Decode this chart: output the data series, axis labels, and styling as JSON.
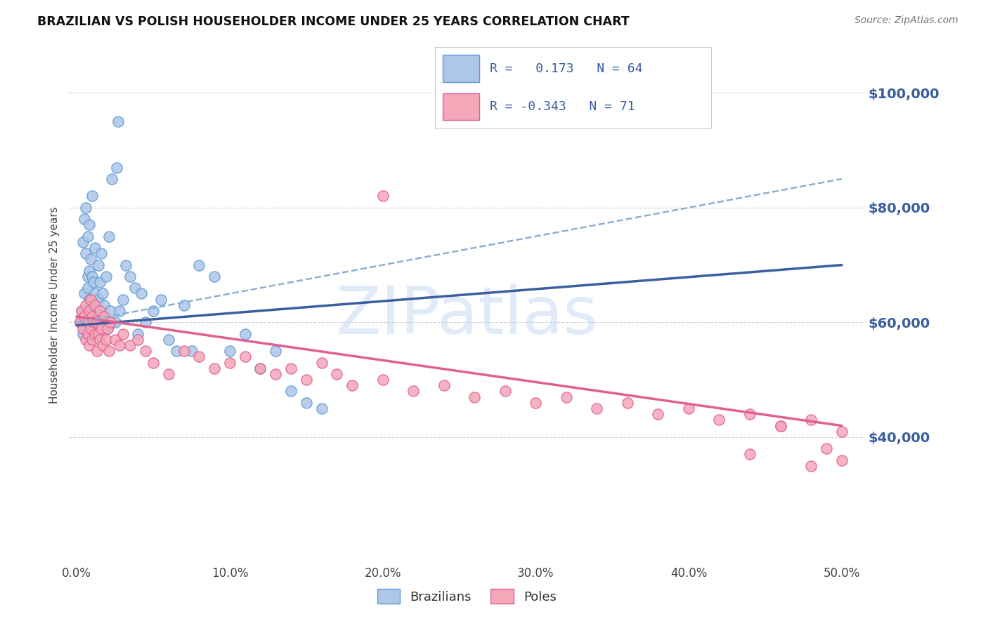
{
  "title": "BRAZILIAN VS POLISH HOUSEHOLDER INCOME UNDER 25 YEARS CORRELATION CHART",
  "source": "Source: ZipAtlas.com",
  "ylabel": "Householder Income Under 25 years",
  "xlabel_ticks": [
    "0.0%",
    "10.0%",
    "20.0%",
    "30.0%",
    "40.0%",
    "50.0%"
  ],
  "xlabel_vals": [
    0.0,
    0.1,
    0.2,
    0.3,
    0.4,
    0.5
  ],
  "ylabel_ticks": [
    "$40,000",
    "$60,000",
    "$80,000",
    "$100,000"
  ],
  "ylabel_vals": [
    40000,
    60000,
    80000,
    100000
  ],
  "xlim": [
    -0.005,
    0.515
  ],
  "ylim": [
    18000,
    108000
  ],
  "brazilian_color": "#aec6e8",
  "polish_color": "#f4a7b9",
  "brazilian_edge": "#5b9bd5",
  "polish_edge": "#e06090",
  "trend_brazilian_color": "#3a5fa0",
  "trend_polish_color": "#e06090",
  "trend_dashed_color": "#8ab0d8",
  "watermark_text": "ZIPatlas",
  "watermark_color": "#c8daf5",
  "legend_r1": "R =   0.173   N = 64",
  "legend_r2": "R = -0.343   N = 71",
  "legend_text_color": "#3a5fa0",
  "trend_braz_x0": 0.0,
  "trend_braz_x1": 0.5,
  "trend_braz_y0": 59500,
  "trend_braz_y1": 70000,
  "trend_pole_x0": 0.0,
  "trend_pole_x1": 0.5,
  "trend_pole_y0": 61000,
  "trend_pole_y1": 42000,
  "trend_dash_x0": 0.0,
  "trend_dash_x1": 0.5,
  "trend_dash_y0": 60000,
  "trend_dash_y1": 85000,
  "braz_x": [
    0.002,
    0.003,
    0.004,
    0.004,
    0.005,
    0.005,
    0.006,
    0.006,
    0.007,
    0.007,
    0.007,
    0.008,
    0.008,
    0.008,
    0.009,
    0.009,
    0.01,
    0.01,
    0.01,
    0.011,
    0.011,
    0.012,
    0.012,
    0.013,
    0.013,
    0.014,
    0.014,
    0.015,
    0.015,
    0.016,
    0.016,
    0.017,
    0.018,
    0.019,
    0.02,
    0.021,
    0.022,
    0.023,
    0.025,
    0.026,
    0.027,
    0.028,
    0.03,
    0.032,
    0.035,
    0.038,
    0.04,
    0.042,
    0.045,
    0.05,
    0.055,
    0.06,
    0.065,
    0.07,
    0.075,
    0.08,
    0.09,
    0.1,
    0.11,
    0.12,
    0.13,
    0.14,
    0.15,
    0.16
  ],
  "braz_y": [
    60000,
    62000,
    74000,
    58000,
    78000,
    65000,
    72000,
    80000,
    68000,
    66000,
    75000,
    64000,
    69000,
    77000,
    63000,
    71000,
    61000,
    68000,
    82000,
    60000,
    67000,
    65000,
    73000,
    62000,
    58000,
    64000,
    70000,
    61000,
    67000,
    59000,
    72000,
    65000,
    63000,
    68000,
    59000,
    75000,
    62000,
    85000,
    60000,
    87000,
    95000,
    62000,
    64000,
    70000,
    68000,
    66000,
    58000,
    65000,
    60000,
    62000,
    64000,
    57000,
    55000,
    63000,
    55000,
    70000,
    68000,
    55000,
    58000,
    52000,
    55000,
    48000,
    46000,
    45000
  ],
  "pole_x": [
    0.002,
    0.003,
    0.004,
    0.005,
    0.006,
    0.006,
    0.007,
    0.007,
    0.008,
    0.008,
    0.009,
    0.009,
    0.01,
    0.01,
    0.011,
    0.012,
    0.012,
    0.013,
    0.013,
    0.014,
    0.015,
    0.015,
    0.016,
    0.017,
    0.018,
    0.019,
    0.02,
    0.021,
    0.022,
    0.025,
    0.028,
    0.03,
    0.035,
    0.04,
    0.045,
    0.05,
    0.06,
    0.07,
    0.08,
    0.09,
    0.1,
    0.11,
    0.12,
    0.13,
    0.14,
    0.15,
    0.16,
    0.17,
    0.18,
    0.2,
    0.22,
    0.24,
    0.26,
    0.28,
    0.3,
    0.32,
    0.34,
    0.36,
    0.38,
    0.4,
    0.42,
    0.44,
    0.46,
    0.48,
    0.5,
    0.5,
    0.49,
    0.48,
    0.46,
    0.44,
    0.2
  ],
  "pole_y": [
    60000,
    62000,
    59000,
    61000,
    57000,
    63000,
    60000,
    58000,
    62000,
    56000,
    59000,
    64000,
    57000,
    61000,
    60000,
    58000,
    63000,
    55000,
    60000,
    58000,
    57000,
    62000,
    59000,
    56000,
    61000,
    57000,
    59000,
    55000,
    60000,
    57000,
    56000,
    58000,
    56000,
    57000,
    55000,
    53000,
    51000,
    55000,
    54000,
    52000,
    53000,
    54000,
    52000,
    51000,
    52000,
    50000,
    53000,
    51000,
    49000,
    50000,
    48000,
    49000,
    47000,
    48000,
    46000,
    47000,
    45000,
    46000,
    44000,
    45000,
    43000,
    44000,
    42000,
    43000,
    41000,
    36000,
    38000,
    35000,
    42000,
    37000,
    82000
  ]
}
